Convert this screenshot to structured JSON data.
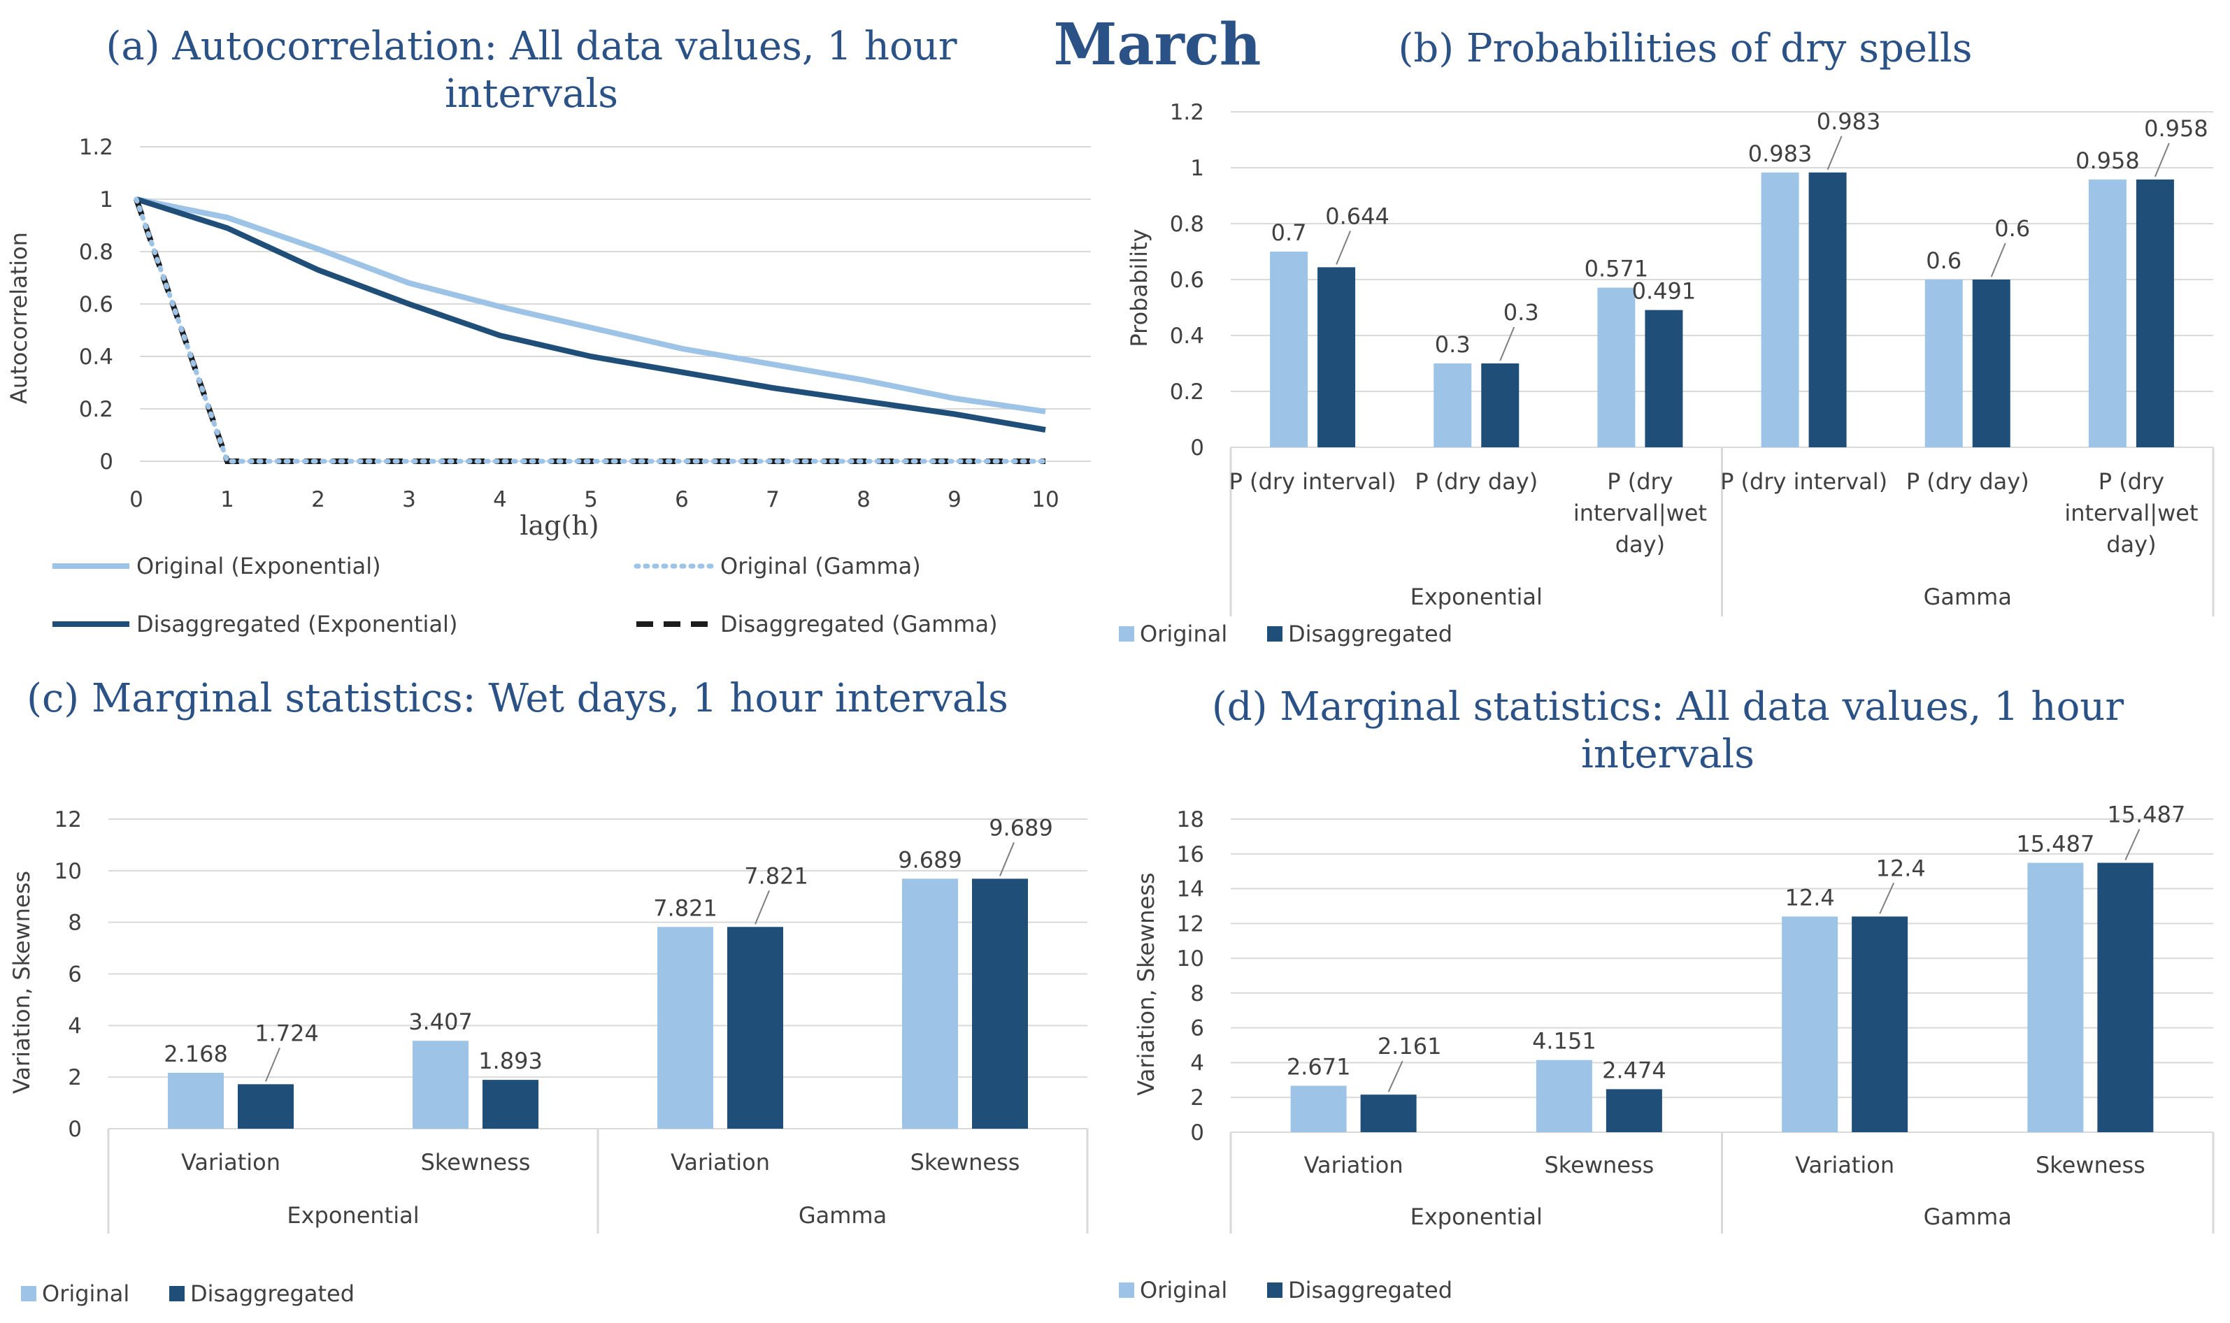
{
  "figure_title": "March",
  "colors": {
    "original": "#9dc3e6",
    "disaggregated": "#1f4e79",
    "title": "#2b5286",
    "grid": "#d9d9d9",
    "text": "#404040"
  },
  "chart_data": [
    {
      "id": "a",
      "type": "line",
      "title": "(a) Autocorrelation: All data values, 1 hour intervals",
      "title_lines": [
        "(a) Autocorrelation: All data values, 1 hour",
        "intervals"
      ],
      "xlabel": "lag(h)",
      "ylabel": "Autocorrelation",
      "xlim": [
        0,
        10
      ],
      "ylim": [
        0,
        1.2
      ],
      "x_ticks": [
        "0",
        "1",
        "2",
        "3",
        "4",
        "5",
        "6",
        "7",
        "8",
        "9",
        "10"
      ],
      "y_ticks": [
        "0",
        "0.2",
        "0.4",
        "0.6",
        "0.8",
        "1",
        "1.2"
      ],
      "grid": true,
      "legend_position": "bottom",
      "x": [
        0,
        1,
        2,
        3,
        4,
        5,
        6,
        7,
        8,
        9,
        10
      ],
      "series": [
        {
          "name": "Original (Exponential)",
          "style": "solid-light",
          "values": [
            1,
            0.93,
            0.81,
            0.68,
            0.59,
            0.51,
            0.43,
            0.37,
            0.31,
            0.24,
            0.19
          ]
        },
        {
          "name": "Original (Gamma)",
          "style": "dotted-light",
          "values": [
            1,
            0,
            0,
            0,
            0,
            0,
            0,
            0,
            0,
            0,
            0
          ]
        },
        {
          "name": "Disaggregated (Exponential)",
          "style": "solid-dark",
          "values": [
            1,
            0.89,
            0.73,
            0.6,
            0.48,
            0.4,
            0.34,
            0.28,
            0.23,
            0.18,
            0.12
          ]
        },
        {
          "name": "Disaggregated (Gamma)",
          "style": "dashed-dark",
          "values": [
            1,
            0,
            0,
            0,
            0,
            0,
            0,
            0,
            0,
            0,
            0
          ]
        }
      ]
    },
    {
      "id": "b",
      "type": "bar",
      "title": "(b) Probabilities of dry spells",
      "title_lines": [
        "(b) Probabilities of dry spells"
      ],
      "xlabel": "",
      "ylabel": "Probability",
      "ylim": [
        0,
        1.2
      ],
      "y_ticks": [
        "0",
        "0.2",
        "0.4",
        "0.6",
        "0.8",
        "1",
        "1.2"
      ],
      "grid": true,
      "legend_position": "bottom-left",
      "groups": [
        "Exponential",
        "Gamma"
      ],
      "categories": [
        "P (dry interval)",
        "P (dry day)",
        "P (dry interval|wet day)",
        "P (dry interval)",
        "P (dry day)",
        "P (dry interval|wet day)"
      ],
      "category_lines": [
        [
          "P (dry interval)"
        ],
        [
          "P (dry day)"
        ],
        [
          "P (dry",
          "interval|wet",
          "day)"
        ],
        [
          "P (dry interval)"
        ],
        [
          "P (dry day)"
        ],
        [
          "P (dry",
          "interval|wet",
          "day)"
        ]
      ],
      "series": [
        {
          "name": "Original",
          "values": [
            0.7,
            0.3,
            0.571,
            0.983,
            0.6,
            0.958
          ],
          "labels": [
            "0.7",
            "0.3",
            "0.571",
            "0.983",
            "0.6",
            "0.958"
          ]
        },
        {
          "name": "Disaggregated",
          "values": [
            0.644,
            0.3,
            0.491,
            0.983,
            0.6,
            0.958
          ],
          "labels": [
            "0.644",
            "0.3",
            "0.491",
            "0.983",
            "0.6",
            "0.958"
          ]
        }
      ]
    },
    {
      "id": "c",
      "type": "bar",
      "title": "(c) Marginal statistics: Wet days, 1 hour intervals",
      "title_lines": [
        "(c) Marginal statistics: Wet days, 1 hour intervals"
      ],
      "xlabel": "",
      "ylabel": "Variation, Skewness",
      "ylim": [
        0,
        12
      ],
      "y_ticks": [
        "0",
        "2",
        "4",
        "6",
        "8",
        "10",
        "12"
      ],
      "grid": true,
      "legend_position": "bottom-left",
      "groups": [
        "Exponential",
        "Gamma"
      ],
      "categories": [
        "Variation",
        "Skewness",
        "Variation",
        "Skewness"
      ],
      "category_lines": [
        [
          "Variation"
        ],
        [
          "Skewness"
        ],
        [
          "Variation"
        ],
        [
          "Skewness"
        ]
      ],
      "series": [
        {
          "name": "Original",
          "values": [
            2.168,
            3.407,
            7.821,
            9.689
          ],
          "labels": [
            "2.168",
            "3.407",
            "7.821",
            "9.689"
          ]
        },
        {
          "name": "Disaggregated",
          "values": [
            1.724,
            1.893,
            7.821,
            9.689
          ],
          "labels": [
            "1.724",
            "1.893",
            "7.821",
            "9.689"
          ]
        }
      ]
    },
    {
      "id": "d",
      "type": "bar",
      "title": "(d) Marginal statistics: All data values, 1 hour intervals",
      "title_lines": [
        "(d) Marginal statistics: All data values, 1 hour",
        "intervals"
      ],
      "xlabel": "",
      "ylabel": "Variation, Skewness",
      "ylim": [
        0,
        18
      ],
      "y_ticks": [
        "0",
        "2",
        "4",
        "6",
        "8",
        "10",
        "12",
        "14",
        "16",
        "18"
      ],
      "grid": true,
      "legend_position": "bottom-left",
      "groups": [
        "Exponential",
        "Gamma"
      ],
      "categories": [
        "Variation",
        "Skewness",
        "Variation",
        "Skewness"
      ],
      "category_lines": [
        [
          "Variation"
        ],
        [
          "Skewness"
        ],
        [
          "Variation"
        ],
        [
          "Skewness"
        ]
      ],
      "series": [
        {
          "name": "Original",
          "values": [
            2.671,
            4.151,
            12.4,
            15.487
          ],
          "labels": [
            "2.671",
            "4.151",
            "12.4",
            "15.487"
          ]
        },
        {
          "name": "Disaggregated",
          "values": [
            2.161,
            2.474,
            12.4,
            15.487
          ],
          "labels": [
            "2.161",
            "2.474",
            "12.4",
            "15.487"
          ]
        }
      ]
    }
  ]
}
